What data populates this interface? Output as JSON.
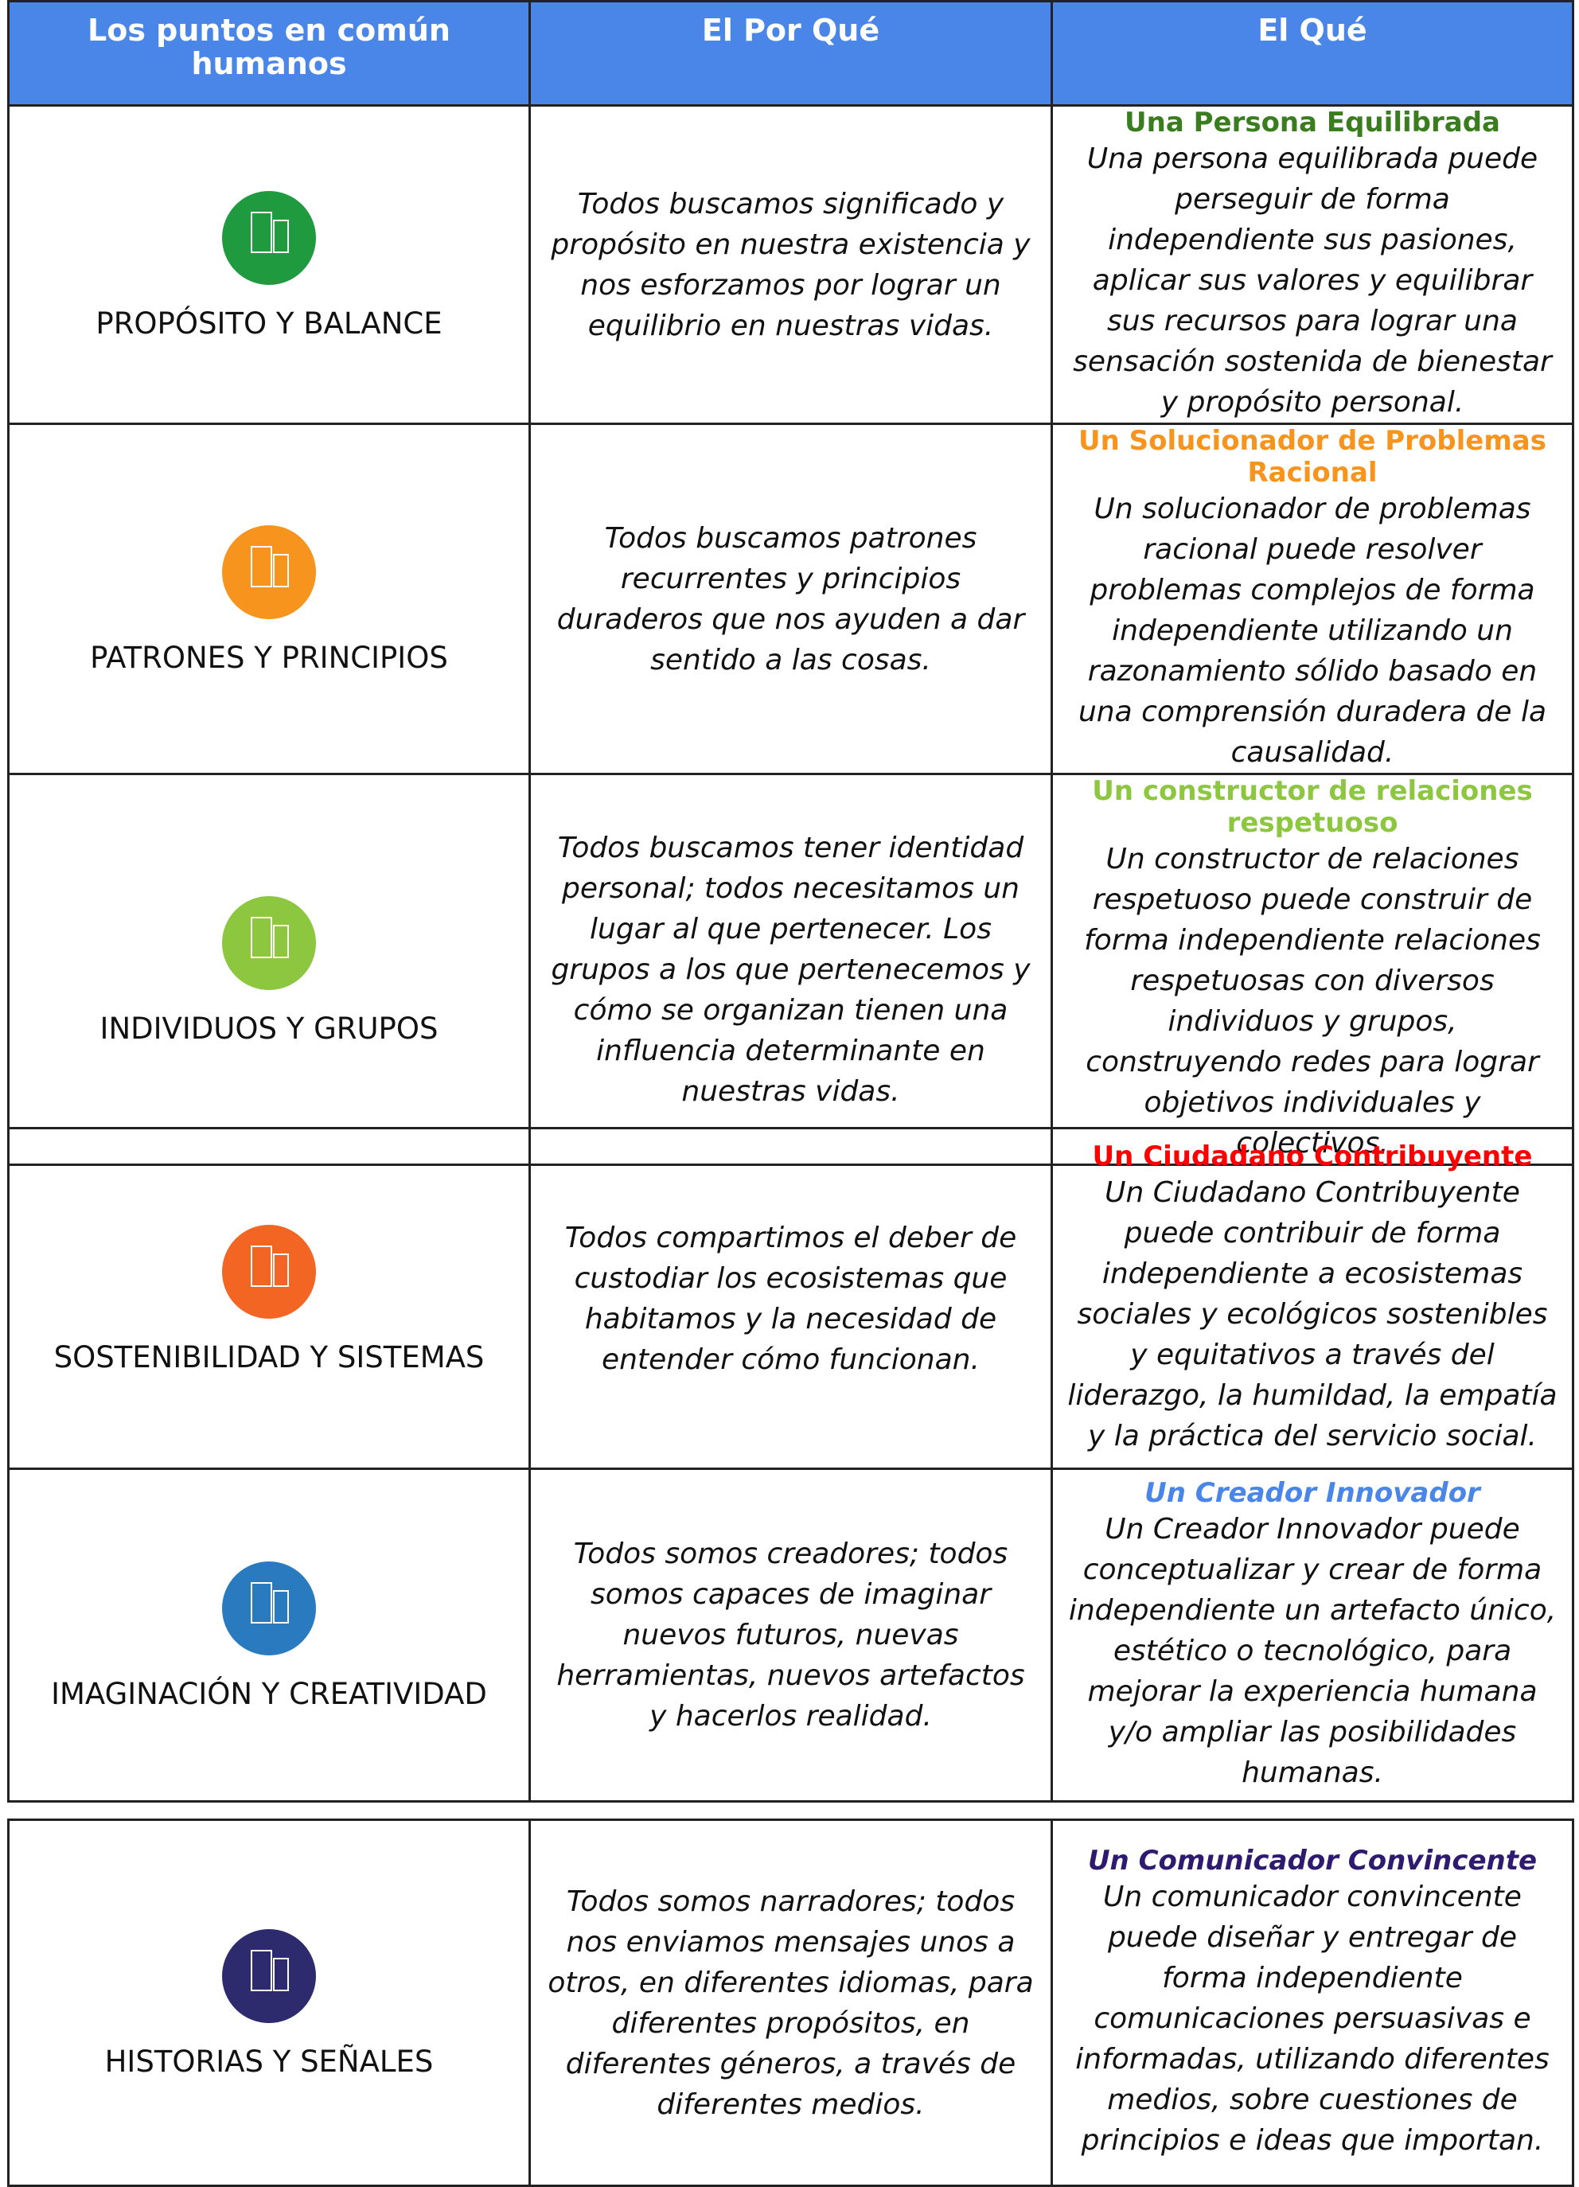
{
  "header": {
    "columns": [
      "Los puntos en común humanos",
      "El Por Qué",
      "El Qué"
    ]
  },
  "rows": [
    {
      "label": "PROPÓSITO Y BALANCE",
      "why": "Todos buscamos significado y propósito en nuestra existencia y nos esforzamos por lograr un equilibrio en nuestras vidas.",
      "what_title": "Una Persona Equilibrada",
      "what": "Una persona equilibrada puede perseguir de forma independiente sus pasiones, aplicar sus valores y equilibrar sus recursos para lograr una sensación sostenida de bienestar y propósito personal."
    },
    {
      "label": "PATRONES Y PRINCIPIOS",
      "why": "Todos buscamos patrones recurrentes y principios duraderos que nos ayuden a dar sentido a las cosas.",
      "what_title": "Un Solucionador de Problemas Racional",
      "what": "Un solucionador de problemas racional puede resolver problemas complejos de forma independiente utilizando un razonamiento sólido basado en una comprensión duradera de la causalidad."
    },
    {
      "label": "INDIVIDUOS Y GRUPOS",
      "why": "Todos buscamos tener identidad personal; todos necesitamos un lugar al que pertenecer. Los grupos a los que pertenecemos y cómo se organizan tienen una influencia determinante en nuestras vidas.",
      "what_title": "Un constructor de relaciones respetuoso",
      "what": "Un constructor de relaciones respetuoso puede construir de forma independiente relaciones respetuosas con diversos individuos y grupos, construyendo redes para lograr objetivos individuales y colectivos."
    },
    {
      "label": "SOSTENIBILIDAD Y SISTEMAS",
      "why": "Todos compartimos el deber de custodiar los ecosistemas que habitamos y la necesidad de entender cómo funcionan.",
      "what_title": "Un Ciudadano Contribuyente",
      "what": "Un Ciudadano Contribuyente puede contribuir de forma independiente a ecosistemas sociales y ecológicos sostenibles y equitativos a través del liderazgo, la humildad, la empatía y la práctica del servicio social."
    },
    {
      "label": "IMAGINACIÓN Y CREATIVIDAD",
      "why": "Todos somos creadores; todos somos capaces de imaginar nuevos futuros, nuevas herramientas, nuevos artefactos y hacerlos realidad.",
      "what_title": "Un Creador Innovador",
      "what": "Un Creador Innovador puede conceptualizar y crear de forma independiente un artefacto único, estético o tecnológico, para mejorar la experiencia humana y/o ampliar las posibilidades humanas."
    },
    {
      "label": "HISTORIAS Y SEÑALES",
      "why": "Todos somos narradores; todos nos enviamos mensajes unos a otros, en diferentes idiomas, para diferentes propósitos, en diferentes géneros, a través de diferentes medios.",
      "what_title": "Un Comunicador Convincente",
      "what": "Un comunicador convincente puede diseñar y entregar de forma independiente comunicaciones persuasivas e informadas, utilizando diferentes medios, sobre cuestiones de principios e ideas que importan."
    }
  ]
}
